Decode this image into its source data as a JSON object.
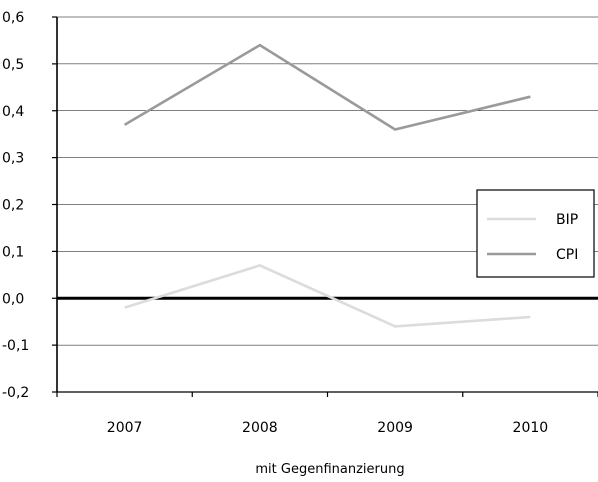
{
  "chart_data": {
    "type": "line",
    "categories": [
      "2007",
      "2008",
      "2009",
      "2010"
    ],
    "series": [
      {
        "name": "BIP",
        "values": [
          -0.02,
          0.07,
          -0.06,
          -0.04
        ],
        "color": "#dcdcdc"
      },
      {
        "name": "CPI",
        "values": [
          0.37,
          0.54,
          0.36,
          0.43
        ],
        "color": "#9a9a9a"
      }
    ],
    "xlabel": "mit Gegenfinanzierung",
    "ylabel": "",
    "ylim": [
      -0.2,
      0.6
    ],
    "yticks": [
      {
        "value": 0.6,
        "label": "0,6"
      },
      {
        "value": 0.5,
        "label": "0,5"
      },
      {
        "value": 0.4,
        "label": "0,4"
      },
      {
        "value": 0.3,
        "label": "0,3"
      },
      {
        "value": 0.2,
        "label": "0,2"
      },
      {
        "value": 0.1,
        "label": "0,1"
      },
      {
        "value": 0.0,
        "label": "0,0"
      },
      {
        "value": -0.1,
        "label": "-0,1"
      },
      {
        "value": -0.2,
        "label": "-0,2"
      }
    ],
    "grid": true,
    "legend_position": "right"
  }
}
